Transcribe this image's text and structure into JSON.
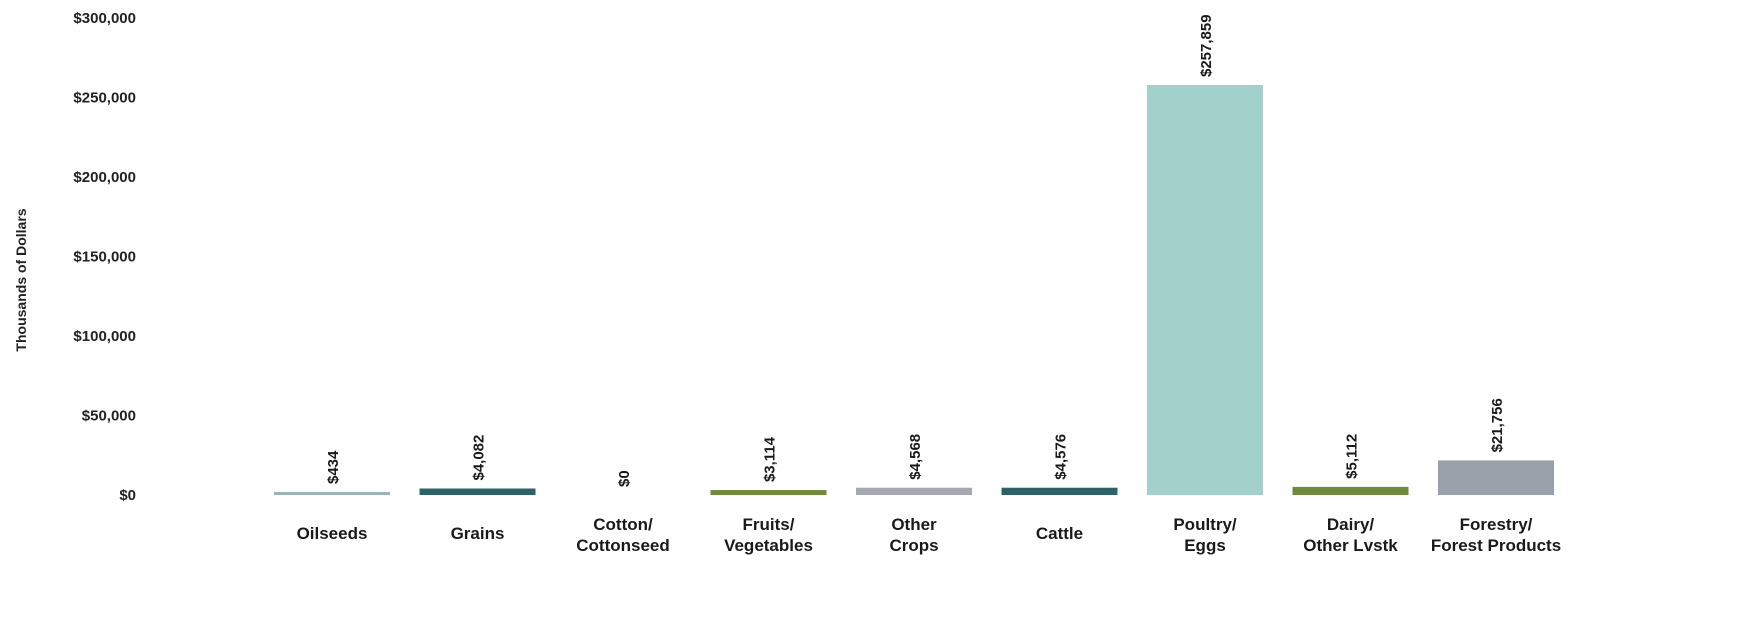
{
  "chart_data": {
    "type": "bar",
    "title": "",
    "xlabel": "",
    "ylabel": "Thousands of Dollars",
    "ylim": [
      0,
      300000
    ],
    "y_ticks": [
      0,
      50000,
      100000,
      150000,
      200000,
      250000,
      300000
    ],
    "y_tick_labels": [
      "$0",
      "$50,000",
      "$100,000",
      "$150,000",
      "$200,000",
      "$250,000",
      "$300,000"
    ],
    "grid": false,
    "legend": "none",
    "categories": [
      [
        "Oilseeds"
      ],
      [
        "Grains"
      ],
      [
        "Cotton/",
        "Cottonseed"
      ],
      [
        "Fruits/",
        "Vegetables"
      ],
      [
        "Other",
        "Crops"
      ],
      [
        "Cattle"
      ],
      [
        "Poultry/",
        "Eggs"
      ],
      [
        "Dairy/",
        "Other Lvstk"
      ],
      [
        "Forestry/",
        "Forest Products"
      ]
    ],
    "values": [
      434,
      4082,
      0,
      3114,
      4568,
      4576,
      257859,
      5112,
      21756
    ],
    "data_labels": [
      "$434",
      "$4,082",
      "$0",
      "$3,114",
      "$4,568",
      "$4,576",
      "$257,859",
      "$5,112",
      "$21,756"
    ],
    "colors": [
      "#9bb4bb",
      "#2d6268",
      "#2d6268",
      "#6f8a3c",
      "#a4a9b1",
      "#2d6268",
      "#a2d0ca",
      "#6f8a3c",
      "#99a2ab"
    ]
  }
}
